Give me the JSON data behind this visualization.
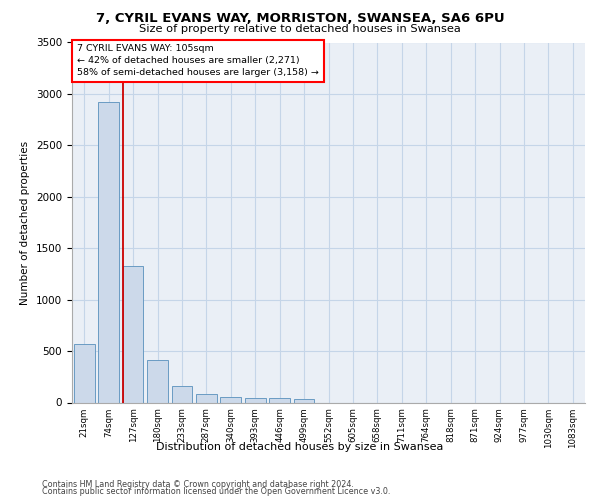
{
  "title_line1": "7, CYRIL EVANS WAY, MORRISTON, SWANSEA, SA6 6PU",
  "title_line2": "Size of property relative to detached houses in Swansea",
  "xlabel": "Distribution of detached houses by size in Swansea",
  "ylabel": "Number of detached properties",
  "footer_line1": "Contains HM Land Registry data © Crown copyright and database right 2024.",
  "footer_line2": "Contains public sector information licensed under the Open Government Licence v3.0.",
  "bar_color": "#ccd9ea",
  "bar_edge_color": "#6a9bc3",
  "grid_color": "#c5d5e8",
  "background_color": "#eaeff6",
  "property_line_color": "#cc0000",
  "annotation_text": "7 CYRIL EVANS WAY: 105sqm\n← 42% of detached houses are smaller (2,271)\n58% of semi-detached houses are larger (3,158) →",
  "categories": [
    "21sqm",
    "74sqm",
    "127sqm",
    "180sqm",
    "233sqm",
    "287sqm",
    "340sqm",
    "393sqm",
    "446sqm",
    "499sqm",
    "552sqm",
    "605sqm",
    "658sqm",
    "711sqm",
    "764sqm",
    "818sqm",
    "871sqm",
    "924sqm",
    "977sqm",
    "1030sqm",
    "1083sqm"
  ],
  "bin_edges": [
    21,
    74,
    127,
    180,
    233,
    287,
    340,
    393,
    446,
    499,
    552,
    605,
    658,
    711,
    764,
    818,
    871,
    924,
    977,
    1030,
    1083
  ],
  "values": [
    570,
    2920,
    1330,
    410,
    165,
    80,
    55,
    45,
    40,
    35,
    0,
    0,
    0,
    0,
    0,
    0,
    0,
    0,
    0,
    0,
    0
  ],
  "ylim": [
    0,
    3500
  ],
  "yticks": [
    0,
    500,
    1000,
    1500,
    2000,
    2500,
    3000,
    3500
  ],
  "property_size": 105
}
